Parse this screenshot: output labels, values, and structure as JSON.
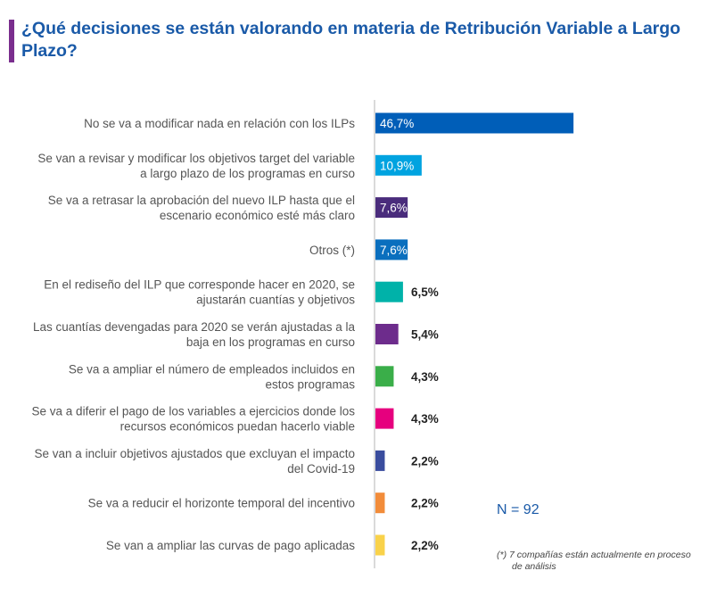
{
  "title": "¿Qué decisiones se están valorando en materia de Retribución Variable a Largo Plazo?",
  "sample_size": "N = 92",
  "footnote_line1": "(*) 7 compañías están actualmente en proceso",
  "footnote_line2": "de análisis",
  "colors": {
    "title": "#1a5aa8",
    "title_bar": "#7a2e8e",
    "axis": "#b5b5b5",
    "label": "#555555"
  },
  "chart_data": {
    "type": "bar",
    "orientation": "horizontal",
    "xlim": [
      0,
      50
    ],
    "grid": false,
    "categories": [
      [
        "No se va a modificar nada en relación con los ILPs"
      ],
      [
        "Se van a revisar y modificar los objetivos target del variable",
        "a largo plazo de los programas en curso"
      ],
      [
        "Se va a retrasar la aprobación del nuevo ILP hasta que el",
        "escenario económico esté más claro"
      ],
      [
        "Otros (*)"
      ],
      [
        "En el rediseño del ILP que corresponde hacer en 2020, se",
        "ajustarán cuantías y objetivos"
      ],
      [
        "Las cuantías devengadas para 2020 se verán ajustadas a la",
        "baja en los programas en curso"
      ],
      [
        "Se va a ampliar el número de empleados incluidos en",
        "estos programas"
      ],
      [
        "Se va a diferir el pago de los variables a ejercicios donde los",
        "recursos económicos puedan hacerlo viable"
      ],
      [
        "Se van a incluir objetivos ajustados que excluyan el impacto",
        "del Covid-19"
      ],
      [
        "Se va a reducir el horizonte temporal del incentivo"
      ],
      [
        "Se van a ampliar las curvas de pago aplicadas"
      ]
    ],
    "values": [
      46.7,
      10.9,
      7.6,
      7.6,
      6.5,
      5.4,
      4.3,
      4.3,
      2.2,
      2.2,
      2.2
    ],
    "value_labels": [
      "46,7%",
      "10,9%",
      "7,6%",
      "7,6%",
      "6,5%",
      "5,4%",
      "4,3%",
      "4,3%",
      "2,2%",
      "2,2%",
      "2,2%"
    ],
    "bar_colors": [
      "#005eb8",
      "#00a3e0",
      "#4a2c7c",
      "#0a6fbe",
      "#00b2a9",
      "#6d2c8c",
      "#3aae49",
      "#e6007e",
      "#3a4d9e",
      "#f28c3a",
      "#f9d24a"
    ]
  }
}
